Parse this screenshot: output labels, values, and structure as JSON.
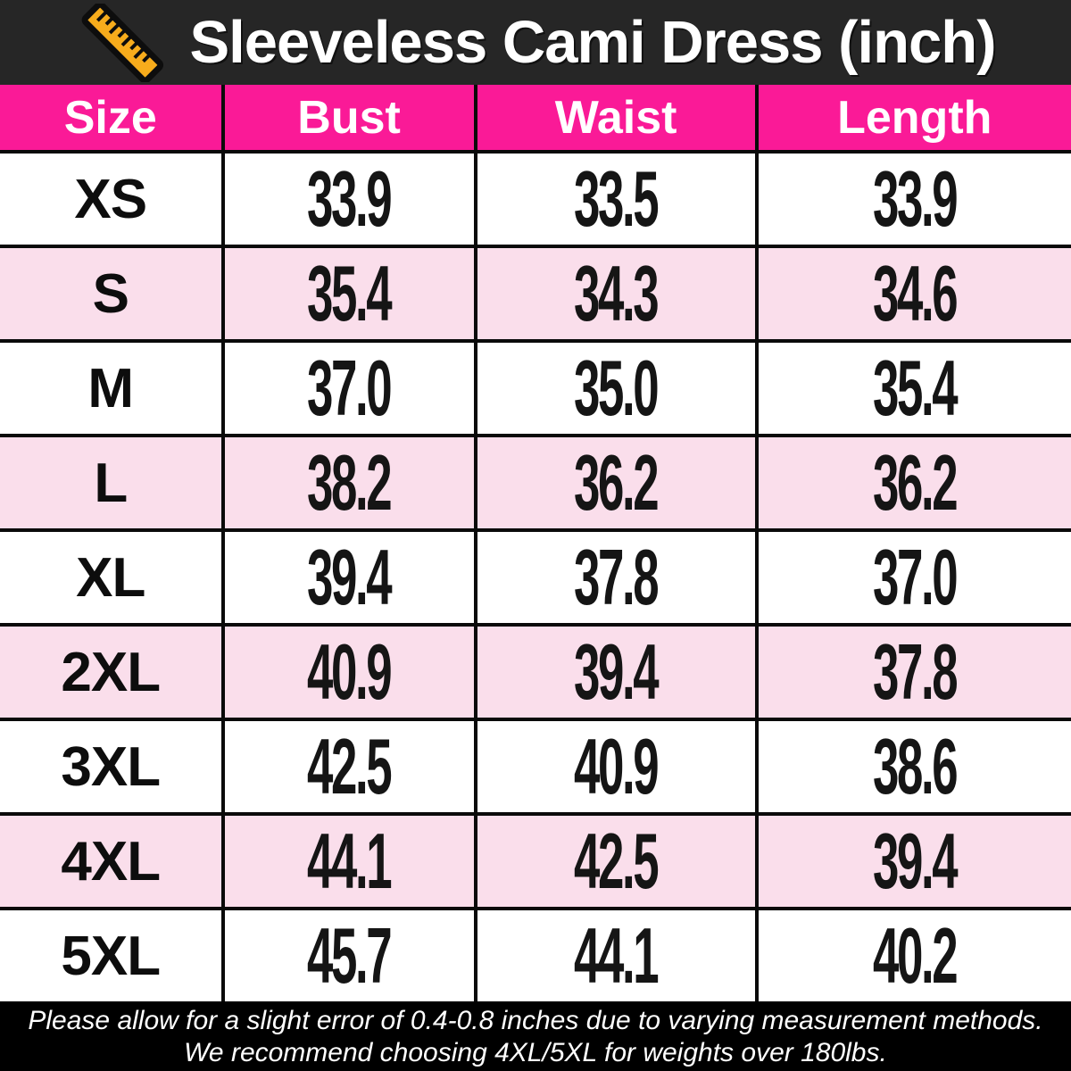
{
  "header": {
    "icon": "ruler-icon",
    "title": "Sleeveless Cami Dress (inch)"
  },
  "chart_data": {
    "type": "table",
    "title": "Sleeveless Cami Dress (inch)",
    "unit": "inch",
    "columns": [
      "Size",
      "Bust",
      "Waist",
      "Length"
    ],
    "rows": [
      [
        "XS",
        "33.9",
        "33.5",
        "33.9"
      ],
      [
        "S",
        "35.4",
        "34.3",
        "34.6"
      ],
      [
        "M",
        "37.0",
        "35.0",
        "35.4"
      ],
      [
        "L",
        "38.2",
        "36.2",
        "36.2"
      ],
      [
        "XL",
        "39.4",
        "37.8",
        "37.0"
      ],
      [
        "2XL",
        "40.9",
        "39.4",
        "37.8"
      ],
      [
        "3XL",
        "42.5",
        "40.9",
        "38.6"
      ],
      [
        "4XL",
        "44.1",
        "42.5",
        "39.4"
      ],
      [
        "5XL",
        "45.7",
        "44.1",
        "40.2"
      ]
    ]
  },
  "footer": {
    "line1": "Please allow for a slight error of 0.4-0.8 inches due to varying measurement methods.",
    "line2": "We recommend choosing 4XL/5XL for weights over 180lbs."
  },
  "colors": {
    "titlebar_bg": "#262626",
    "header_pink": "#FA1A97",
    "row_pink": "#FADEEB",
    "row_white": "#FFFFFF",
    "grid_line": "#0A0A0A",
    "footer_bg": "#000000",
    "ruler_orange": "#F7AC1C",
    "title_text": "#FFFFFF",
    "cell_text": "#151515"
  }
}
